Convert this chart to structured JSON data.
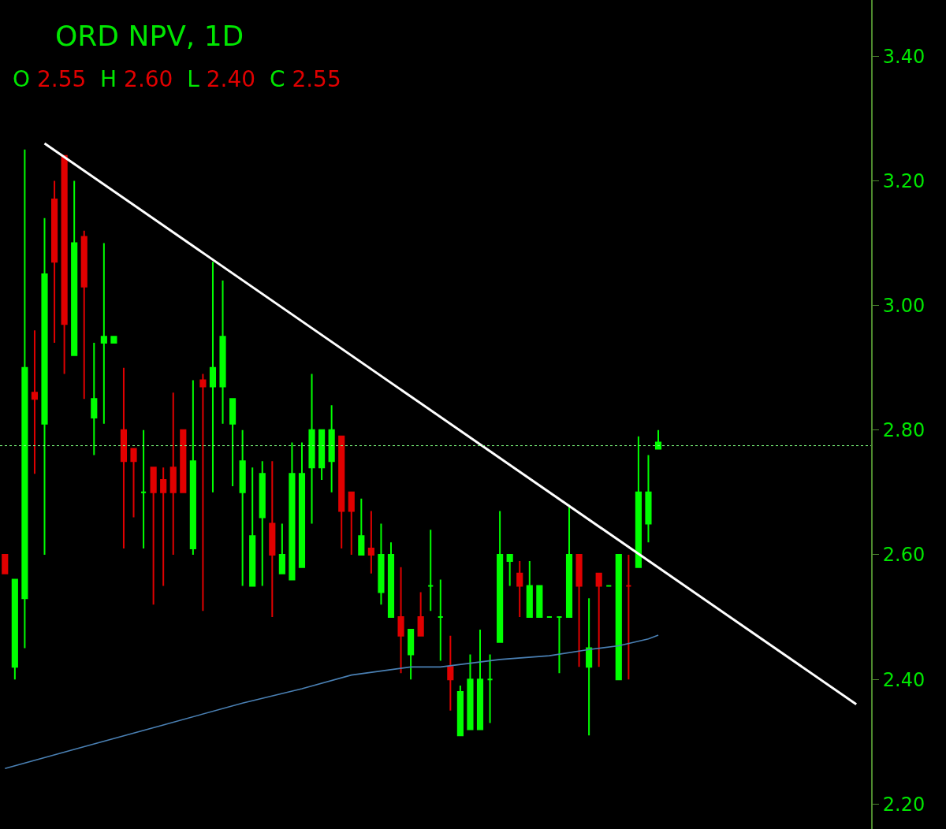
{
  "chart_data": {
    "type": "candlestick",
    "title": "ORD NPV, 1D",
    "annotations": [
      "O 2.55 H 2.60 L 2.40 C 2.55"
    ],
    "categories": [
      null,
      null,
      null,
      null,
      null,
      null,
      null,
      null,
      null,
      null,
      null,
      null,
      null,
      null,
      null,
      null,
      null,
      null,
      null,
      null,
      null,
      null,
      null,
      null,
      null,
      null,
      null,
      null,
      null,
      null,
      null,
      null,
      null,
      null,
      null,
      null,
      null,
      null,
      null,
      null,
      null,
      null,
      null,
      null,
      null,
      null,
      null,
      null,
      null,
      null,
      null,
      null,
      null,
      null,
      null,
      null,
      null,
      null,
      null,
      null,
      null,
      null,
      null,
      null,
      null,
      null,
      null,
      null,
      null,
      null,
      null,
      null,
      null,
      null,
      null,
      null,
      null,
      null,
      null,
      null,
      null,
      null,
      null,
      null,
      null,
      null,
      null,
      null
    ],
    "ohlc": [
      [
        2.6,
        2.6,
        2.57,
        2.57
      ],
      [
        2.42,
        2.56,
        2.4,
        2.56
      ],
      [
        2.53,
        3.25,
        2.45,
        2.9
      ],
      [
        2.86,
        2.96,
        2.73,
        2.85
      ],
      [
        2.81,
        3.14,
        2.6,
        3.05
      ],
      [
        3.17,
        3.2,
        2.94,
        3.07
      ],
      [
        3.24,
        3.24,
        2.89,
        2.97
      ],
      [
        2.92,
        3.2,
        2.92,
        3.1
      ],
      [
        3.11,
        3.12,
        2.85,
        3.03
      ],
      [
        2.82,
        2.94,
        2.76,
        2.85
      ],
      [
        2.94,
        3.1,
        2.81,
        2.95
      ],
      [
        2.94,
        2.95,
        2.94,
        2.95
      ],
      [
        2.8,
        2.9,
        2.61,
        2.75
      ],
      [
        2.77,
        2.77,
        2.66,
        2.75
      ],
      [
        2.7,
        2.8,
        2.61,
        2.7
      ],
      [
        2.74,
        2.74,
        2.52,
        2.7
      ],
      [
        2.72,
        2.74,
        2.55,
        2.7
      ],
      [
        2.74,
        2.86,
        2.6,
        2.7
      ],
      [
        2.8,
        2.8,
        2.7,
        2.7
      ],
      [
        2.61,
        2.88,
        2.6,
        2.75
      ],
      [
        2.88,
        2.89,
        2.51,
        2.87
      ],
      [
        2.87,
        3.07,
        2.7,
        2.9
      ],
      [
        2.87,
        3.04,
        2.81,
        2.95
      ],
      [
        2.81,
        2.85,
        2.71,
        2.85
      ],
      [
        2.7,
        2.8,
        2.55,
        2.75
      ],
      [
        2.55,
        2.74,
        2.55,
        2.63
      ],
      [
        2.66,
        2.75,
        2.55,
        2.73
      ],
      [
        2.65,
        2.75,
        2.5,
        2.6
      ],
      [
        2.57,
        2.65,
        2.57,
        2.6
      ],
      [
        2.56,
        2.78,
        2.56,
        2.73
      ],
      [
        2.58,
        2.78,
        2.58,
        2.73
      ],
      [
        2.74,
        2.89,
        2.65,
        2.8
      ],
      [
        2.74,
        2.8,
        2.72,
        2.8
      ],
      [
        2.75,
        2.84,
        2.7,
        2.8
      ],
      [
        2.79,
        2.79,
        2.61,
        2.67
      ],
      [
        2.7,
        2.7,
        2.6,
        2.67
      ],
      [
        2.6,
        2.69,
        2.6,
        2.63
      ],
      [
        2.61,
        2.67,
        2.57,
        2.6
      ],
      [
        2.54,
        2.65,
        2.52,
        2.6
      ],
      [
        2.5,
        2.62,
        2.5,
        2.6
      ],
      [
        2.5,
        2.58,
        2.41,
        2.47
      ],
      [
        2.44,
        2.48,
        2.4,
        2.48
      ],
      [
        2.5,
        2.54,
        2.47,
        2.47
      ],
      [
        2.55,
        2.64,
        2.51,
        2.55
      ],
      [
        2.5,
        2.56,
        2.43,
        2.5
      ],
      [
        2.42,
        2.47,
        2.35,
        2.4
      ],
      [
        2.31,
        2.39,
        2.31,
        2.38
      ],
      [
        2.32,
        2.44,
        2.32,
        2.4
      ],
      [
        2.32,
        2.48,
        2.32,
        2.4
      ],
      [
        2.4,
        2.44,
        2.33,
        2.4
      ],
      [
        2.46,
        2.67,
        2.46,
        2.6
      ],
      [
        2.59,
        2.6,
        2.55,
        2.6
      ],
      [
        2.57,
        2.59,
        2.5,
        2.55
      ],
      [
        2.5,
        2.59,
        2.5,
        2.55
      ],
      [
        2.5,
        2.55,
        2.5,
        2.55
      ],
      [
        2.5,
        2.5,
        2.5,
        2.5
      ],
      [
        2.5,
        2.5,
        2.41,
        2.5
      ],
      [
        2.5,
        2.68,
        2.5,
        2.6
      ],
      [
        2.6,
        2.6,
        2.42,
        2.55
      ],
      [
        2.42,
        2.53,
        2.31,
        2.45
      ],
      [
        2.57,
        2.57,
        2.42,
        2.55
      ],
      [
        2.55,
        2.55,
        2.55,
        2.55
      ],
      [
        2.4,
        2.6,
        2.4,
        2.6
      ],
      [
        2.55,
        2.6,
        2.4,
        2.55
      ],
      [
        2.58,
        2.79,
        2.58,
        2.7
      ],
      [
        2.65,
        2.76,
        2.62,
        2.7
      ],
      [
        2.77,
        2.8,
        2.77,
        2.78
      ],
      null,
      null,
      null,
      null,
      null,
      null,
      null,
      null,
      null,
      null,
      null,
      null,
      null,
      null,
      null,
      null,
      null,
      null,
      null,
      null,
      null
    ],
    "colors": [
      "#e00000",
      "#00ff00",
      "#00ff00",
      "#e00000",
      "#00ff00",
      "#e00000",
      "#e00000",
      "#00ff00",
      "#e00000",
      "#00ff00",
      "#00ff00",
      "#00ff00",
      "#e00000",
      "#e00000",
      "#00ff00",
      "#e00000",
      "#e00000",
      "#e00000",
      "#e00000",
      "#00ff00",
      "#e00000",
      "#00ff00",
      "#00ff00",
      "#00ff00",
      "#00ff00",
      "#00ff00",
      "#00ff00",
      "#e00000",
      "#00ff00",
      "#00ff00",
      "#00ff00",
      "#00ff00",
      "#00ff00",
      "#00ff00",
      "#e00000",
      "#e00000",
      "#00ff00",
      "#e00000",
      "#00ff00",
      "#00ff00",
      "#e00000",
      "#00ff00",
      "#e00000",
      "#00ff00",
      "#00ff00",
      "#e00000",
      "#00ff00",
      "#00ff00",
      "#00ff00",
      "#00ff00",
      "#00ff00",
      "#00ff00",
      "#e00000",
      "#00ff00",
      "#00ff00",
      "#00ff00",
      "#00ff00",
      "#00ff00",
      "#e00000",
      "#00ff00",
      "#e00000",
      "#00ff00",
      "#00ff00",
      "#e00000",
      "#00ff00",
      "#00ff00",
      "#00ff00",
      null,
      null,
      null,
      null,
      null,
      null,
      null,
      null,
      null,
      null,
      null,
      null,
      null,
      null,
      null,
      null,
      null,
      null,
      null,
      null,
      null
    ],
    "series": [
      {
        "type": "line",
        "color": "#4a80b4",
        "values": [
          2.257,
          null,
          null,
          null,
          null,
          null,
          null,
          null,
          2.292,
          null,
          null,
          null,
          null,
          null,
          null,
          null,
          2.327,
          null,
          null,
          null,
          null,
          null,
          null,
          null,
          2.362,
          null,
          null,
          null,
          null,
          null,
          2.385,
          null,
          null,
          null,
          null,
          2.407,
          null,
          null,
          null,
          null,
          null,
          2.42,
          null,
          null,
          2.42,
          null,
          null,
          null,
          null,
          null,
          2.432,
          null,
          null,
          null,
          null,
          2.438,
          null,
          null,
          null,
          2.448,
          null,
          null,
          2.454,
          null,
          null,
          2.465,
          2.471,
          null,
          null,
          null,
          null,
          null,
          null,
          null,
          null,
          null,
          null,
          null,
          null,
          null,
          null,
          null,
          null,
          null,
          null,
          null,
          null,
          null
        ]
      },
      {
        "type": "line",
        "color": "#ffffff",
        "values": [
          null,
          null,
          null,
          null,
          3.26,
          null,
          null,
          null,
          null,
          null,
          null,
          null,
          null,
          null,
          null,
          null,
          null,
          null,
          null,
          null,
          null,
          null,
          null,
          null,
          null,
          null,
          null,
          null,
          null,
          null,
          null,
          null,
          null,
          null,
          null,
          null,
          null,
          null,
          null,
          null,
          null,
          null,
          null,
          null,
          null,
          null,
          null,
          null,
          null,
          null,
          null,
          null,
          null,
          null,
          null,
          null,
          null,
          null,
          null,
          null,
          null,
          null,
          null,
          null,
          null,
          null,
          null,
          null,
          null,
          null,
          null,
          null,
          null,
          null,
          null,
          null,
          null,
          null,
          null,
          null,
          null,
          null,
          null,
          null,
          null,
          null,
          2.36,
          null
        ]
      }
    ],
    "ref_lines": [
      {
        "axis": "y",
        "value": 2.775,
        "color": "#7fff7f",
        "line_style": "dotted"
      }
    ],
    "ylim": [
      2.16,
      3.49
    ],
    "yticks": [
      {
        "value": 2.2,
        "label": "2.20"
      },
      {
        "value": 2.4,
        "label": "2.40"
      },
      {
        "value": 2.6,
        "label": "2.60"
      },
      {
        "value": 2.8,
        "label": "2.80"
      },
      {
        "value": 3.0,
        "label": "3.00"
      },
      {
        "value": 3.2,
        "label": "3.20"
      },
      {
        "value": 3.4,
        "label": "3.40"
      }
    ],
    "grid": false,
    "tick_labels": "y"
  }
}
